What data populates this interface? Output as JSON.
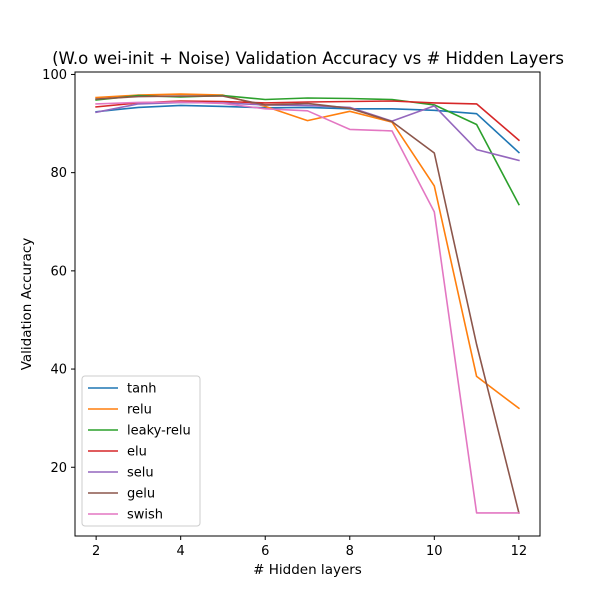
{
  "chart_data": {
    "type": "line",
    "title": "(W.o wei-init + Noise) Validation Accuracy vs # Hidden Layers",
    "xlabel": "# Hidden layers",
    "ylabel": "Validation Accuracy",
    "xlim": [
      1.5,
      12.5
    ],
    "ylim": [
      6,
      100.5
    ],
    "xticks": [
      2,
      4,
      6,
      8,
      10,
      12
    ],
    "yticks": [
      20,
      40,
      60,
      80,
      100
    ],
    "grid": false,
    "legend_position": "lower left",
    "x": [
      2,
      3,
      4,
      5,
      6,
      7,
      8,
      9,
      10,
      11,
      12
    ],
    "series": [
      {
        "name": "tanh",
        "color": "#1f77b4",
        "values": [
          92.4,
          93.3,
          93.7,
          93.5,
          93.2,
          93.3,
          93.0,
          93.0,
          92.7,
          92.0,
          84.1
        ]
      },
      {
        "name": "relu",
        "color": "#ff7f0e",
        "values": [
          95.3,
          95.8,
          96.0,
          95.8,
          93.5,
          90.6,
          92.5,
          90.3,
          77.3,
          38.5,
          32.0
        ]
      },
      {
        "name": "leaky-relu",
        "color": "#2ca02c",
        "values": [
          94.8,
          95.7,
          95.4,
          95.7,
          94.9,
          95.2,
          95.1,
          94.9,
          93.8,
          89.8,
          73.5
        ]
      },
      {
        "name": "elu",
        "color": "#d62728",
        "values": [
          93.4,
          94.2,
          94.6,
          94.5,
          94.2,
          94.4,
          94.5,
          94.6,
          94.2,
          94.0,
          86.6
        ]
      },
      {
        "name": "selu",
        "color": "#9467bd",
        "values": [
          92.3,
          94.0,
          94.3,
          94.2,
          93.8,
          93.7,
          93.3,
          90.5,
          93.6,
          84.7,
          82.5
        ]
      },
      {
        "name": "gelu",
        "color": "#8c564b",
        "values": [
          95.0,
          95.5,
          95.6,
          95.6,
          93.8,
          94.1,
          93.1,
          90.4,
          84.0,
          45.0,
          10.7
        ]
      },
      {
        "name": "swish",
        "color": "#e377c2",
        "values": [
          94.0,
          94.3,
          94.4,
          94.1,
          93.0,
          92.6,
          88.8,
          88.5,
          72.0,
          10.7,
          10.7
        ]
      }
    ]
  }
}
